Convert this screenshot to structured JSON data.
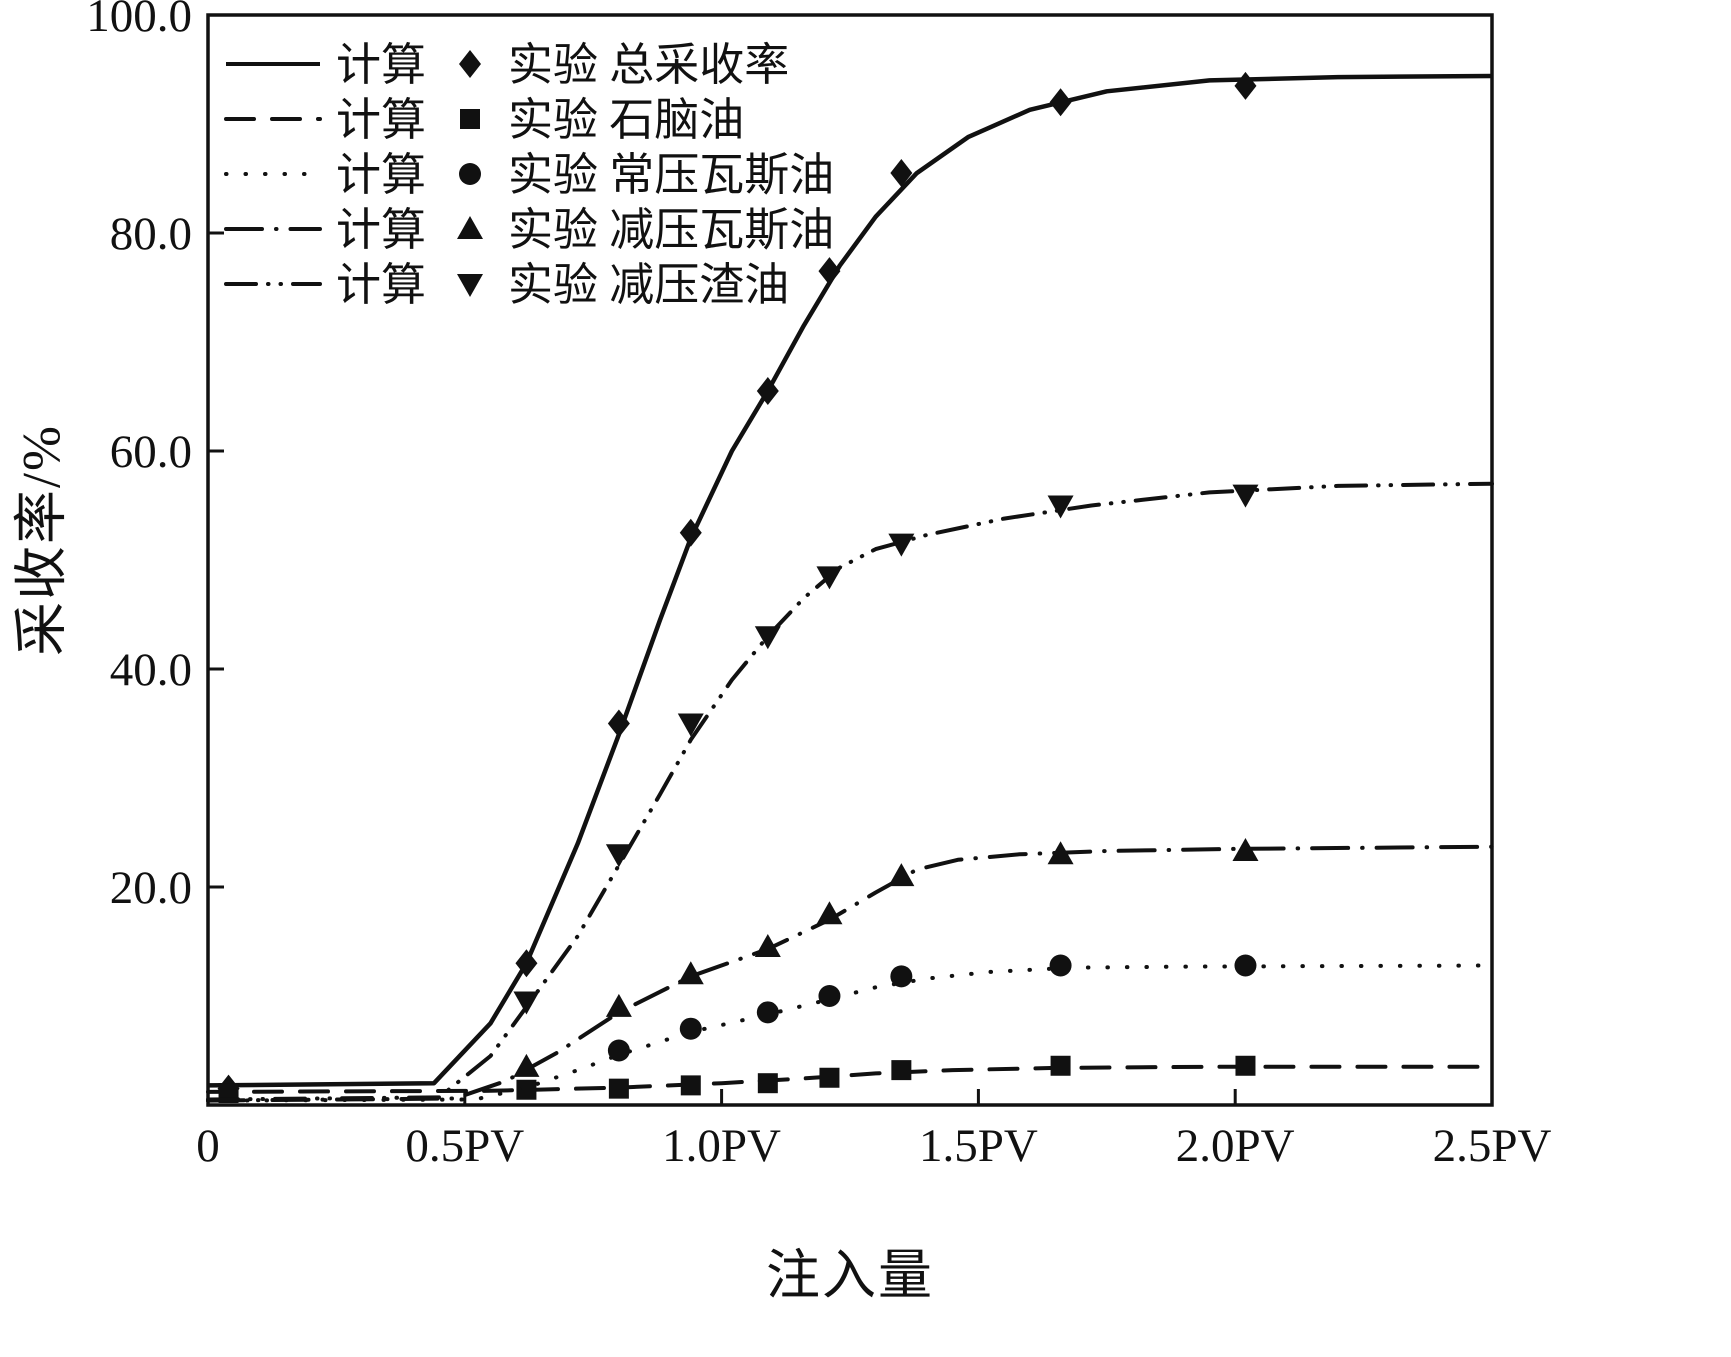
{
  "chart_data": {
    "type": "line",
    "title": "",
    "xlabel": "注入量",
    "ylabel": "采收率/%",
    "xlim": [
      0,
      2.5
    ],
    "ylim": [
      0,
      100
    ],
    "grid": false,
    "legend_position": "top-left-inside",
    "color": "#111111",
    "x_ticks": [
      {
        "v": 0.0,
        "label": "0"
      },
      {
        "v": 0.5,
        "label": "0.5PV"
      },
      {
        "v": 1.0,
        "label": "1.0PV"
      },
      {
        "v": 1.5,
        "label": "1.5PV"
      },
      {
        "v": 2.0,
        "label": "2.0PV"
      },
      {
        "v": 2.5,
        "label": "2.5PV"
      }
    ],
    "y_ticks": [
      {
        "v": 20,
        "label": "20.0"
      },
      {
        "v": 40,
        "label": "40.0"
      },
      {
        "v": 60,
        "label": "60.0"
      },
      {
        "v": 80,
        "label": "80.0"
      },
      {
        "v": 100,
        "label": "100.0"
      }
    ],
    "legend": {
      "calc_label": "计算",
      "rows": [
        {
          "exp_label": "实验 总采收率",
          "line_style": "solid",
          "marker": "diamond"
        },
        {
          "exp_label": "实验 石脑油",
          "line_style": "dashed",
          "marker": "square"
        },
        {
          "exp_label": "实验 常压瓦斯油",
          "line_style": "dotted",
          "marker": "circle"
        },
        {
          "exp_label": "实验 减压瓦斯油",
          "line_style": "dashdot",
          "marker": "triangle-up"
        },
        {
          "exp_label": "实验 减压渣油",
          "line_style": "dashdotdot",
          "marker": "triangle-down"
        }
      ]
    },
    "series": [
      {
        "key": "total-recovery",
        "name": "总采收率",
        "line_style": "solid",
        "marker": "diamond",
        "line_points": [
          [
            0,
            1.8
          ],
          [
            0.44,
            2.0
          ],
          [
            0.55,
            7.5
          ],
          [
            0.62,
            13
          ],
          [
            0.72,
            24
          ],
          [
            0.8,
            34
          ],
          [
            0.88,
            44.5
          ],
          [
            0.94,
            52
          ],
          [
            1.02,
            60
          ],
          [
            1.09,
            65.5
          ],
          [
            1.16,
            71.5
          ],
          [
            1.23,
            77
          ],
          [
            1.3,
            81.5
          ],
          [
            1.38,
            85.5
          ],
          [
            1.48,
            88.8
          ],
          [
            1.6,
            91.3
          ],
          [
            1.75,
            93
          ],
          [
            1.95,
            94
          ],
          [
            2.2,
            94.3
          ],
          [
            2.5,
            94.4
          ]
        ],
        "marker_points": [
          [
            0.04,
            1.5
          ],
          [
            0.62,
            13
          ],
          [
            0.8,
            35
          ],
          [
            0.94,
            52.5
          ],
          [
            1.09,
            65.5
          ],
          [
            1.21,
            76.5
          ],
          [
            1.35,
            85.5
          ],
          [
            1.66,
            92
          ],
          [
            2.02,
            93.5
          ]
        ]
      },
      {
        "key": "naphtha",
        "name": "石脑油",
        "line_style": "dashed",
        "marker": "square",
        "line_points": [
          [
            0,
            1.2
          ],
          [
            0.55,
            1.3
          ],
          [
            0.8,
            1.6
          ],
          [
            1.0,
            2.0
          ],
          [
            1.15,
            2.4
          ],
          [
            1.3,
            2.9
          ],
          [
            1.45,
            3.2
          ],
          [
            1.65,
            3.4
          ],
          [
            1.95,
            3.5
          ],
          [
            2.5,
            3.5
          ]
        ],
        "marker_points": [
          [
            0.04,
            1.1
          ],
          [
            0.62,
            1.4
          ],
          [
            0.8,
            1.5
          ],
          [
            0.94,
            1.8
          ],
          [
            1.09,
            2.0
          ],
          [
            1.21,
            2.5
          ],
          [
            1.35,
            3.2
          ],
          [
            1.66,
            3.6
          ],
          [
            2.02,
            3.6
          ]
        ]
      },
      {
        "key": "atmospheric-gas-oil",
        "name": "常压瓦斯油",
        "line_style": "dotted",
        "marker": "circle",
        "line_points": [
          [
            0,
            0.4
          ],
          [
            0.52,
            0.5
          ],
          [
            0.62,
            1.6
          ],
          [
            0.72,
            3.2
          ],
          [
            0.8,
            4.6
          ],
          [
            0.94,
            6.7
          ],
          [
            1.09,
            8.3
          ],
          [
            1.21,
            9.7
          ],
          [
            1.3,
            10.8
          ],
          [
            1.4,
            11.6
          ],
          [
            1.52,
            12.2
          ],
          [
            1.68,
            12.6
          ],
          [
            1.9,
            12.7
          ],
          [
            2.5,
            12.8
          ]
        ],
        "marker_points": [
          [
            0.8,
            5
          ],
          [
            0.94,
            7
          ],
          [
            1.09,
            8.5
          ],
          [
            1.21,
            10
          ],
          [
            1.35,
            11.8
          ],
          [
            1.66,
            12.8
          ],
          [
            2.02,
            12.8
          ]
        ]
      },
      {
        "key": "vacuum-gas-oil",
        "name": "减压瓦斯油",
        "line_style": "dashdot",
        "marker": "triangle-up",
        "line_points": [
          [
            0,
            0.4
          ],
          [
            0.48,
            0.6
          ],
          [
            0.58,
            2.2
          ],
          [
            0.68,
            4.8
          ],
          [
            0.8,
            8.5
          ],
          [
            0.94,
            11.8
          ],
          [
            1.09,
            14.3
          ],
          [
            1.21,
            17
          ],
          [
            1.3,
            19.5
          ],
          [
            1.38,
            21.6
          ],
          [
            1.46,
            22.5
          ],
          [
            1.58,
            23
          ],
          [
            1.75,
            23.3
          ],
          [
            2.0,
            23.5
          ],
          [
            2.5,
            23.7
          ]
        ],
        "marker_points": [
          [
            0.62,
            3.5
          ],
          [
            0.8,
            9
          ],
          [
            0.94,
            12
          ],
          [
            1.09,
            14.5
          ],
          [
            1.21,
            17.5
          ],
          [
            1.35,
            21
          ],
          [
            1.66,
            23
          ],
          [
            2.02,
            23.3
          ]
        ]
      },
      {
        "key": "vacuum-residue",
        "name": "减压渣油",
        "line_style": "dashdotdot",
        "marker": "triangle-down",
        "line_points": [
          [
            0,
            0.5
          ],
          [
            0.45,
            0.7
          ],
          [
            0.55,
            4.5
          ],
          [
            0.62,
            9
          ],
          [
            0.72,
            15.5
          ],
          [
            0.8,
            22
          ],
          [
            0.88,
            28.5
          ],
          [
            0.94,
            33.5
          ],
          [
            1.02,
            39
          ],
          [
            1.09,
            43
          ],
          [
            1.16,
            46.5
          ],
          [
            1.23,
            49.3
          ],
          [
            1.3,
            51
          ],
          [
            1.4,
            52.3
          ],
          [
            1.55,
            53.8
          ],
          [
            1.72,
            55
          ],
          [
            1.95,
            56.2
          ],
          [
            2.2,
            56.8
          ],
          [
            2.5,
            57
          ]
        ],
        "marker_points": [
          [
            0.62,
            9.5
          ],
          [
            0.8,
            23
          ],
          [
            0.94,
            35
          ],
          [
            1.09,
            43
          ],
          [
            1.21,
            48.5
          ],
          [
            1.35,
            51.5
          ],
          [
            1.66,
            55
          ],
          [
            2.02,
            56
          ]
        ]
      }
    ]
  }
}
